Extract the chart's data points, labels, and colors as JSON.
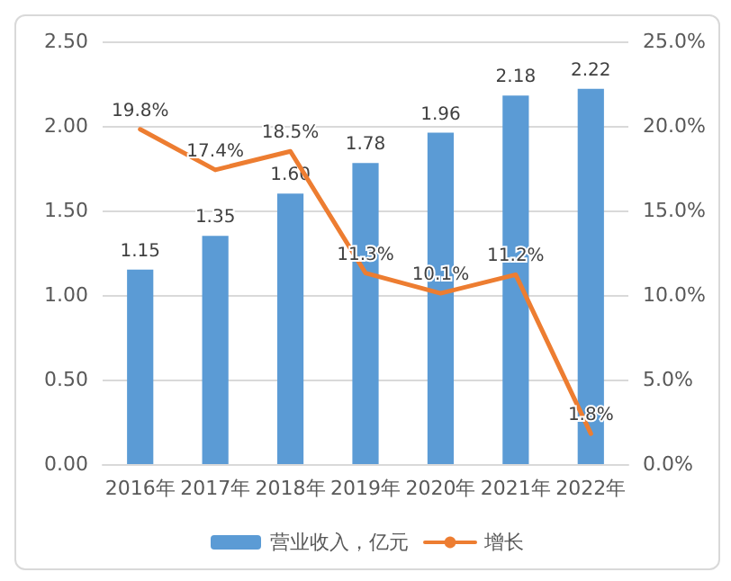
{
  "chart_data": {
    "type": "bar",
    "categories": [
      "2016年",
      "2017年",
      "2018年",
      "2019年",
      "2020年",
      "2021年",
      "2022年"
    ],
    "series": [
      {
        "name": "营业收入，亿元",
        "color": "#5b9bd5",
        "values": [
          1.15,
          1.35,
          1.6,
          1.78,
          1.96,
          2.18,
          2.22
        ],
        "value_labels": [
          "1.15",
          "1.35",
          "1.60",
          "1.78",
          "1.96",
          "2.18",
          "2.22"
        ]
      },
      {
        "name": "增长",
        "type": "line",
        "axis": "y2",
        "color": "#ed7d31",
        "values": [
          19.8,
          17.4,
          18.5,
          11.3,
          10.1,
          11.2,
          1.8
        ],
        "value_labels": [
          "19.8%",
          "17.4%",
          "18.5%",
          "11.3%",
          "10.1%",
          "11.2%",
          "1.8%"
        ]
      }
    ],
    "ylim": [
      0,
      2.5
    ],
    "yticks": [
      {
        "value": 0,
        "label": "0.00"
      },
      {
        "value": 0.5,
        "label": "0.50"
      },
      {
        "value": 1,
        "label": "1.00"
      },
      {
        "value": 1.5,
        "label": "1.50"
      },
      {
        "value": 2,
        "label": "2.00"
      },
      {
        "value": 2.5,
        "label": "2.50"
      }
    ],
    "y2lim": [
      0,
      25
    ],
    "y2ticks": [
      {
        "value": 0,
        "label": "0.0%"
      },
      {
        "value": 5,
        "label": "5.0%"
      },
      {
        "value": 10,
        "label": "10.0%"
      },
      {
        "value": 15,
        "label": "15.0%"
      },
      {
        "value": 20,
        "label": "20.0%"
      },
      {
        "value": 25,
        "label": "25.0%"
      }
    ],
    "grid": "y",
    "legend": "bottom",
    "marker": "none",
    "line_style": "solid"
  }
}
